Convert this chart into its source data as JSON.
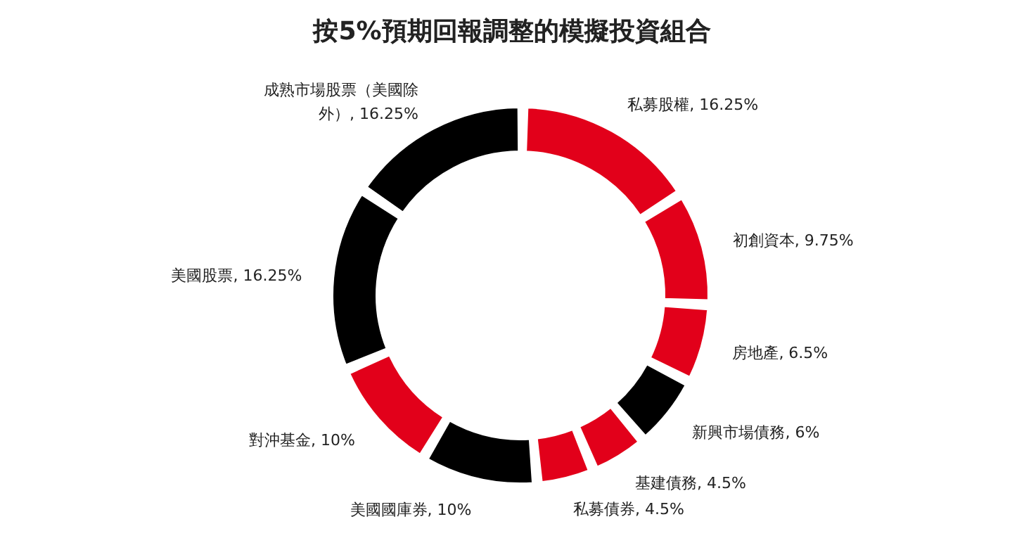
{
  "chart_data": {
    "type": "donut",
    "title": "按5%預期回報調整的模擬投資組合",
    "categories": [
      "私募股權",
      "初創資本",
      "房地產",
      "新興市場債務",
      "基建債務",
      "私募債券",
      "美國國庫券",
      "對沖基金",
      "美國股票",
      "成熟市場股票（美國除外）"
    ],
    "values": [
      16.25,
      9.75,
      6.5,
      6,
      4.5,
      4.5,
      10,
      10,
      16.25,
      16.25
    ],
    "value_labels": [
      "16.25%",
      "9.75%",
      "6.5%",
      "6%",
      "4.5%",
      "4.5%",
      "10%",
      "10%",
      "16.25%",
      "16.25%"
    ],
    "colors": [
      "#e2001a",
      "#e2001a",
      "#e2001a",
      "#000000",
      "#e2001a",
      "#e2001a",
      "#000000",
      "#e2001a",
      "#000000",
      "#000000"
    ]
  }
}
